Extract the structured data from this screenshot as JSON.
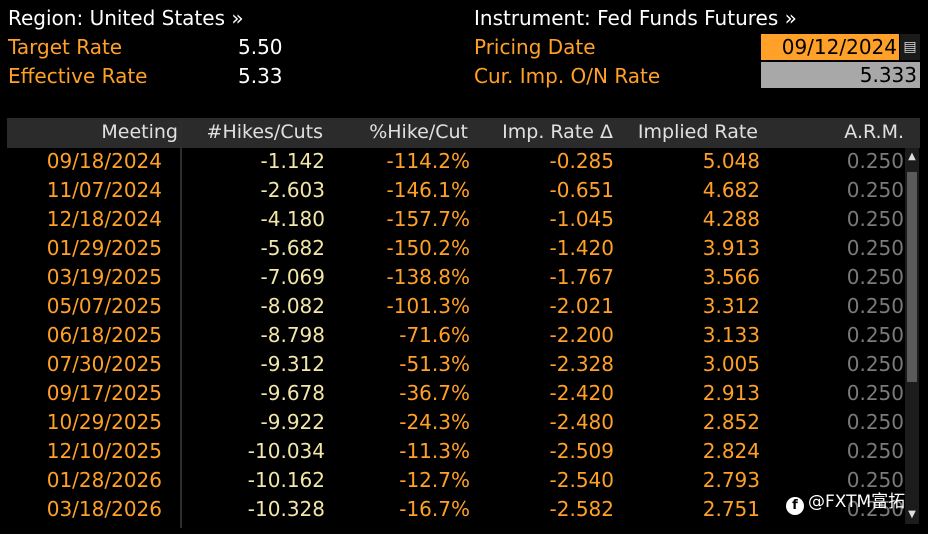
{
  "header": {
    "region_label": "Region: United States »",
    "instrument_label": "Instrument: Fed Funds Futures »",
    "target_rate_label": "Target Rate",
    "target_rate_value": "5.50",
    "effective_rate_label": "Effective Rate",
    "effective_rate_value": "5.33",
    "pricing_date_label": "Pricing Date",
    "pricing_date_value": "09/12/2024",
    "cur_imp_label": "Cur. Imp. O/N Rate",
    "cur_imp_value": "5.333"
  },
  "table": {
    "columns": [
      "Meeting",
      "#Hikes/Cuts",
      "%Hike/Cut",
      "Imp. Rate Δ",
      "Implied Rate",
      "A.R.M."
    ],
    "rows": [
      [
        "09/18/2024",
        "-1.142",
        "-114.2%",
        "-0.285",
        "5.048",
        "0.250"
      ],
      [
        "11/07/2024",
        "-2.603",
        "-146.1%",
        "-0.651",
        "4.682",
        "0.250"
      ],
      [
        "12/18/2024",
        "-4.180",
        "-157.7%",
        "-1.045",
        "4.288",
        "0.250"
      ],
      [
        "01/29/2025",
        "-5.682",
        "-150.2%",
        "-1.420",
        "3.913",
        "0.250"
      ],
      [
        "03/19/2025",
        "-7.069",
        "-138.8%",
        "-1.767",
        "3.566",
        "0.250"
      ],
      [
        "05/07/2025",
        "-8.082",
        "-101.3%",
        "-2.021",
        "3.312",
        "0.250"
      ],
      [
        "06/18/2025",
        "-8.798",
        "-71.6%",
        "-2.200",
        "3.133",
        "0.250"
      ],
      [
        "07/30/2025",
        "-9.312",
        "-51.3%",
        "-2.328",
        "3.005",
        "0.250"
      ],
      [
        "09/17/2025",
        "-9.678",
        "-36.7%",
        "-2.420",
        "2.913",
        "0.250"
      ],
      [
        "10/29/2025",
        "-9.922",
        "-24.3%",
        "-2.480",
        "2.852",
        "0.250"
      ],
      [
        "12/10/2025",
        "-10.034",
        "-11.3%",
        "-2.509",
        "2.824",
        "0.250"
      ],
      [
        "01/28/2026",
        "-10.162",
        "-12.7%",
        "-2.540",
        "2.793",
        "0.250"
      ],
      [
        "03/18/2026",
        "-10.328",
        "-16.7%",
        "-2.582",
        "2.751",
        "0.250"
      ]
    ]
  },
  "watermark": "@FXTM富拓",
  "colors": {
    "orange": "#ffa028",
    "hikes": "#f2e6a8",
    "arm": "#7a7a7a",
    "header_bg": "#2b2b2b"
  },
  "icons": {
    "calendar": "calendar-icon",
    "scroll_up": "scroll-up-arrow-icon",
    "scroll_down": "scroll-down-arrow-icon"
  }
}
